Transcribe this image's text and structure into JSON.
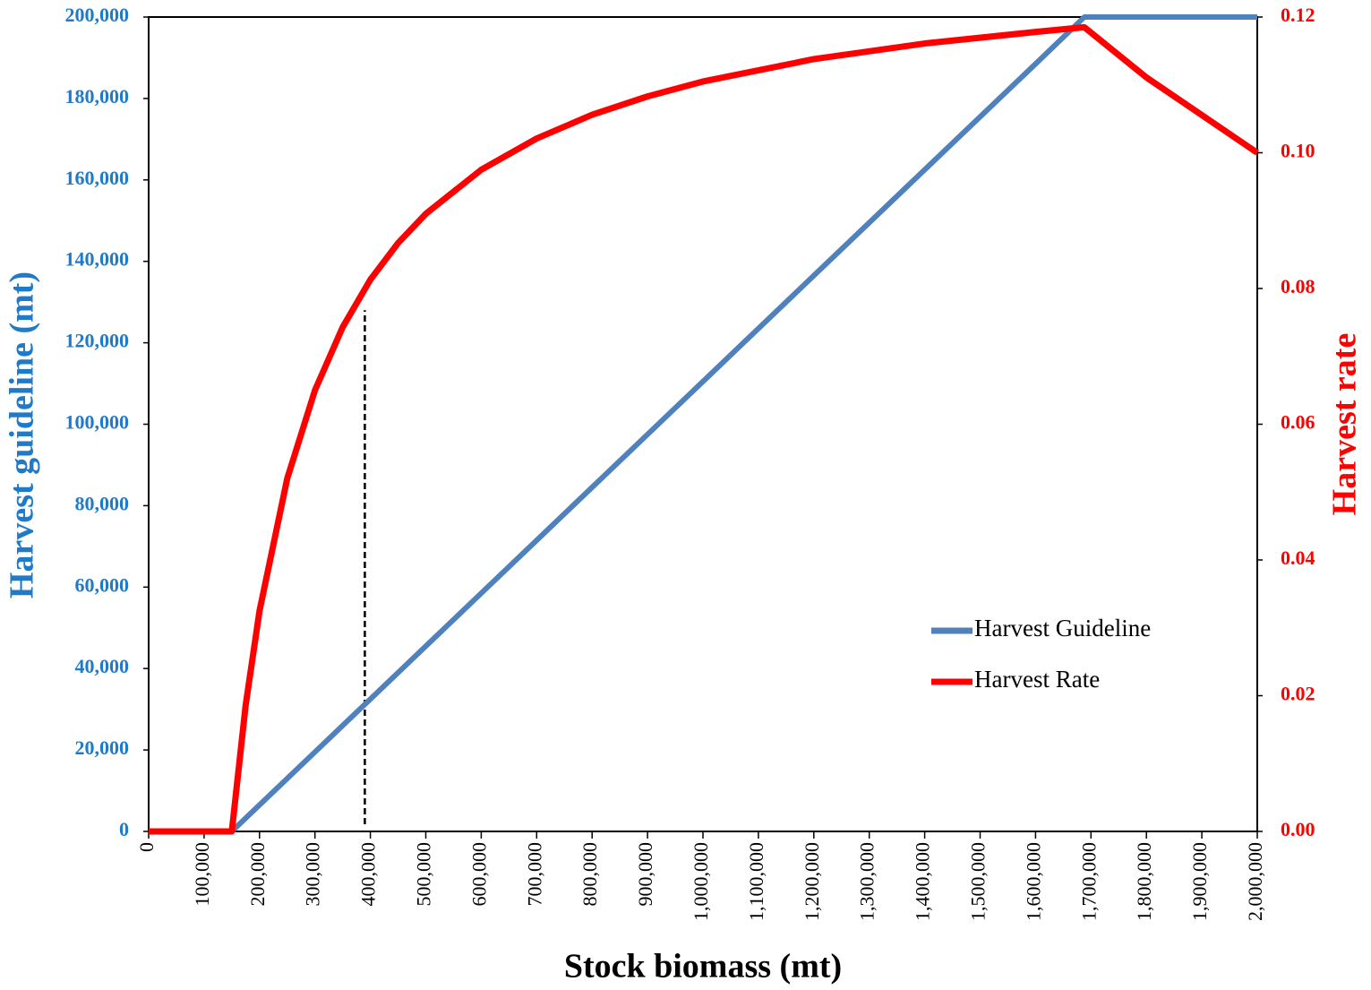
{
  "chart_data": {
    "type": "line",
    "xlabel": "Stock biomass (mt)",
    "ylabel": "Harvest guideline (mt)",
    "y2label": "Harvest rate",
    "x": [
      0,
      150000,
      175000,
      200000,
      250000,
      300000,
      350000,
      400000,
      450000,
      500000,
      600000,
      700000,
      800000,
      900000,
      1000000,
      1200000,
      1400000,
      1600000,
      1688000,
      1800000,
      2000000
    ],
    "series": [
      {
        "name": "Harvest Guideline",
        "color": "#4f81bd",
        "values": [
          0,
          0,
          3250,
          6500,
          13000,
          19500,
          26000,
          32500,
          39000,
          45500,
          58500,
          71500,
          84500,
          97500,
          110500,
          136500,
          162500,
          188500,
          200000,
          200000,
          200000
        ]
      },
      {
        "name": "Harvest Rate",
        "color": "#ff0000",
        "axis": "y2",
        "values": [
          0,
          0,
          0.0186,
          0.0325,
          0.052,
          0.065,
          0.0743,
          0.0813,
          0.0867,
          0.091,
          0.0975,
          0.1021,
          0.1056,
          0.1083,
          0.1105,
          0.1138,
          0.1161,
          0.1178,
          0.1185,
          0.1111,
          0.1
        ]
      }
    ],
    "reference_line": {
      "x": 390000,
      "y": 128000
    },
    "xlim": [
      0,
      2000000
    ],
    "xticks": [
      {
        "value": 0,
        "label": "0"
      },
      {
        "value": 100000,
        "label": "100,000"
      },
      {
        "value": 200000,
        "label": "200,000"
      },
      {
        "value": 300000,
        "label": "300,000"
      },
      {
        "value": 400000,
        "label": "400,000"
      },
      {
        "value": 500000,
        "label": "500,000"
      },
      {
        "value": 600000,
        "label": "600,000"
      },
      {
        "value": 700000,
        "label": "700,000"
      },
      {
        "value": 800000,
        "label": "800,000"
      },
      {
        "value": 900000,
        "label": "900,000"
      },
      {
        "value": 1000000,
        "label": "1,000,000"
      },
      {
        "value": 1100000,
        "label": "1,100,000"
      },
      {
        "value": 1200000,
        "label": "1,200,000"
      },
      {
        "value": 1300000,
        "label": "1,300,000"
      },
      {
        "value": 1400000,
        "label": "1,400,000"
      },
      {
        "value": 1500000,
        "label": "1,500,000"
      },
      {
        "value": 1600000,
        "label": "1,600,000"
      },
      {
        "value": 1700000,
        "label": "1,700,000"
      },
      {
        "value": 1800000,
        "label": "1,800,000"
      },
      {
        "value": 1900000,
        "label": "1,900,000"
      },
      {
        "value": 2000000,
        "label": "2,000,000"
      }
    ],
    "ylim": [
      0,
      200000
    ],
    "yticks": [
      0,
      {
        "value": 20000,
        "label": "20,000"
      },
      {
        "value": 40000,
        "label": "40,000"
      },
      {
        "value": 60000,
        "label": "60,000"
      },
      {
        "value": 80000,
        "label": "80,000"
      },
      {
        "value": 100000,
        "label": "100,000"
      },
      {
        "value": 120000,
        "label": "120,000"
      },
      {
        "value": 140000,
        "label": "140,000"
      },
      {
        "value": 160000,
        "label": "160,000"
      },
      {
        "value": 180000,
        "label": "180,000"
      },
      {
        "value": 200000,
        "label": "200,000"
      }
    ],
    "y2lim": [
      0,
      0.12
    ],
    "y2ticks": [
      {
        "value": 0,
        "label": "0.00"
      },
      {
        "value": 0.02,
        "label": "0.02"
      },
      {
        "value": 0.04,
        "label": "0.04"
      },
      {
        "value": 0.06,
        "label": "0.06"
      },
      {
        "value": 0.08,
        "label": "0.08"
      },
      {
        "value": 0.1,
        "label": "0.10"
      },
      {
        "value": 0.12,
        "label": "0.12"
      }
    ],
    "ylabel_color": "#1f7ac8",
    "y2label_color": "#ff0000",
    "legend_position": "right"
  }
}
